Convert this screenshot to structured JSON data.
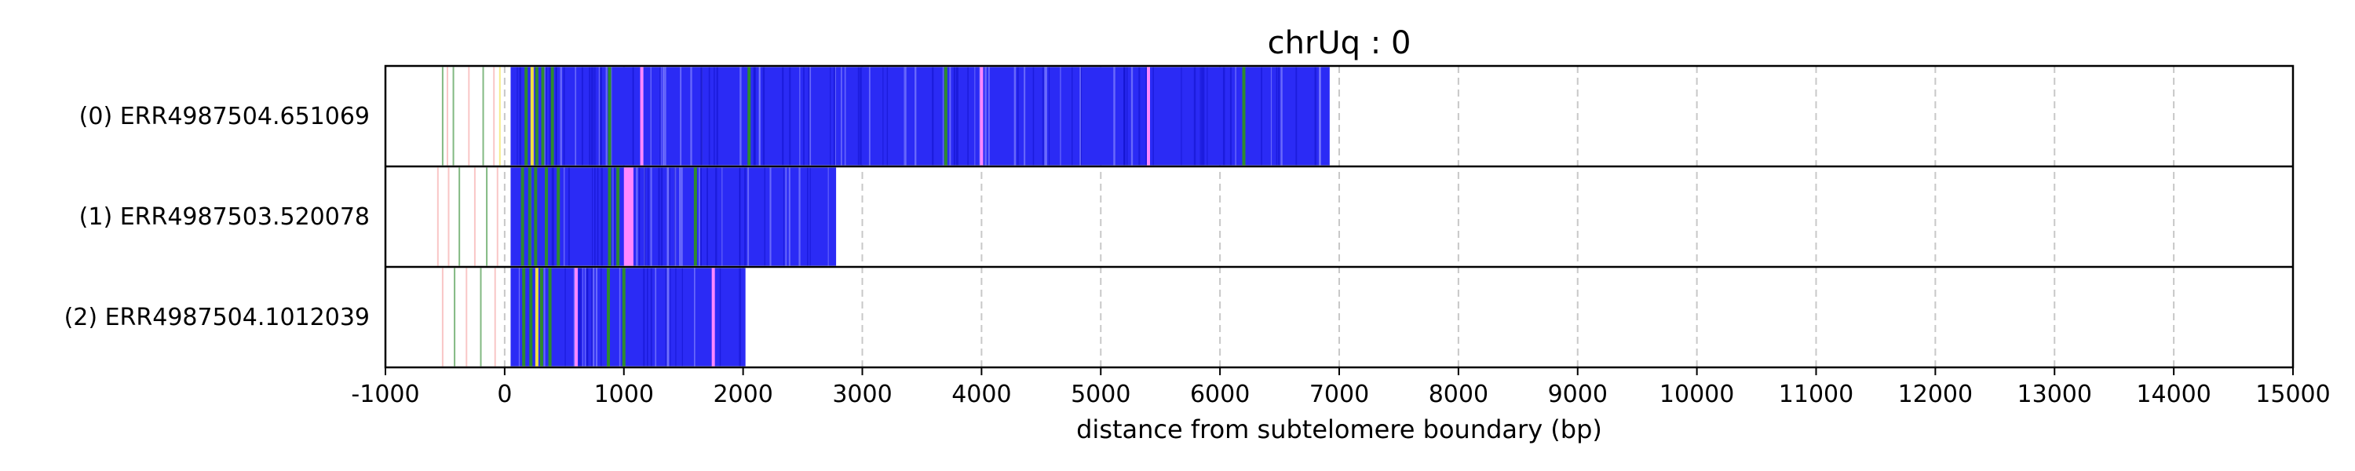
{
  "chart_data": {
    "type": "bar",
    "title": "chrUq : 0",
    "xlabel": "distance from subtelomere boundary (bp)",
    "ylabel": "",
    "xlim": [
      -1000,
      15000
    ],
    "xticks": [
      -1000,
      0,
      1000,
      2000,
      3000,
      4000,
      5000,
      6000,
      7000,
      8000,
      9000,
      10000,
      11000,
      12000,
      13000,
      14000,
      15000
    ],
    "grid": "vertical dashed",
    "colors": {
      "repeat": "#2b2bf5",
      "green": "#2e8b2e",
      "pink": "#ff88ff",
      "light_red": "#f5a0a0",
      "yellow": "#f0e040"
    },
    "rows": [
      {
        "label": "(0) ERR4987504.651069",
        "read_start": -1000,
        "block_start": 50,
        "block_end": 6920,
        "pre_marks": [
          {
            "x": -520,
            "color": "green"
          },
          {
            "x": -480,
            "color": "light_red"
          },
          {
            "x": -430,
            "color": "green"
          },
          {
            "x": -300,
            "color": "light_red"
          },
          {
            "x": -180,
            "color": "green"
          },
          {
            "x": -90,
            "color": "light_red"
          },
          {
            "x": -40,
            "color": "yellow"
          }
        ],
        "inner_marks": [
          {
            "x": 180,
            "color": "green"
          },
          {
            "x": 230,
            "color": "yellow"
          },
          {
            "x": 270,
            "color": "green"
          },
          {
            "x": 320,
            "color": "green"
          },
          {
            "x": 400,
            "color": "green"
          },
          {
            "x": 880,
            "color": "green"
          },
          {
            "x": 1150,
            "color": "pink"
          },
          {
            "x": 2050,
            "color": "green"
          },
          {
            "x": 3700,
            "color": "green"
          },
          {
            "x": 4000,
            "color": "pink"
          },
          {
            "x": 5400,
            "color": "pink"
          },
          {
            "x": 6200,
            "color": "green"
          }
        ]
      },
      {
        "label": "(1) ERR4987503.520078",
        "read_start": -1000,
        "block_start": 50,
        "block_end": 2780,
        "pre_marks": [
          {
            "x": -560,
            "color": "light_red"
          },
          {
            "x": -470,
            "color": "light_red"
          },
          {
            "x": -380,
            "color": "green"
          },
          {
            "x": -250,
            "color": "light_red"
          },
          {
            "x": -150,
            "color": "green"
          },
          {
            "x": -60,
            "color": "light_red"
          }
        ],
        "inner_marks": [
          {
            "x": 150,
            "color": "green"
          },
          {
            "x": 210,
            "color": "green"
          },
          {
            "x": 260,
            "color": "green"
          },
          {
            "x": 350,
            "color": "green"
          },
          {
            "x": 450,
            "color": "green"
          },
          {
            "x": 880,
            "color": "green"
          },
          {
            "x": 950,
            "color": "green"
          },
          {
            "x": 1050,
            "color": "pink"
          },
          {
            "x": 1600,
            "color": "green"
          }
        ],
        "pink_band": [
          1000,
          1080
        ]
      },
      {
        "label": "(2) ERR4987504.1012039",
        "read_start": -1000,
        "block_start": 50,
        "block_end": 2020,
        "pre_marks": [
          {
            "x": -520,
            "color": "light_red"
          },
          {
            "x": -420,
            "color": "green"
          },
          {
            "x": -320,
            "color": "light_red"
          },
          {
            "x": -200,
            "color": "green"
          },
          {
            "x": -80,
            "color": "light_red"
          }
        ],
        "inner_marks": [
          {
            "x": 160,
            "color": "green"
          },
          {
            "x": 220,
            "color": "green"
          },
          {
            "x": 270,
            "color": "yellow"
          },
          {
            "x": 310,
            "color": "green"
          },
          {
            "x": 380,
            "color": "green"
          },
          {
            "x": 600,
            "color": "pink"
          },
          {
            "x": 870,
            "color": "green"
          },
          {
            "x": 1000,
            "color": "green"
          },
          {
            "x": 1750,
            "color": "pink"
          }
        ]
      }
    ]
  }
}
